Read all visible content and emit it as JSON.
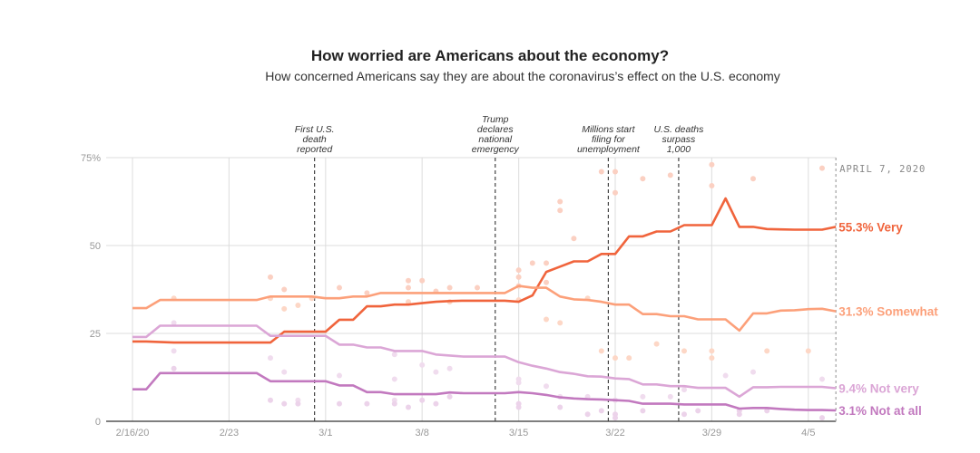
{
  "header": {
    "title": "How worried are Americans about the economy?",
    "subtitle": "How concerned Americans say they are about the coronavirus’s effect on the U.S. economy"
  },
  "chart_data": {
    "type": "line",
    "title": "How worried are Americans about the economy?",
    "subtitle": "How concerned Americans say they are about the coronavirus’s effect on the U.S. economy",
    "xlabel": "",
    "ylabel": "",
    "x_unit": "days since 2/16/20",
    "xlim": [
      0,
      51
    ],
    "ylim": [
      0,
      75
    ],
    "grid": true,
    "y_ticks": [
      {
        "value": 0,
        "label": "0"
      },
      {
        "value": 25,
        "label": "25"
      },
      {
        "value": 50,
        "label": "50"
      },
      {
        "value": 75,
        "label": "75%"
      }
    ],
    "x_ticks": [
      {
        "day": 0,
        "label": "2/16/20"
      },
      {
        "day": 7,
        "label": "2/23"
      },
      {
        "day": 14,
        "label": "3/1"
      },
      {
        "day": 21,
        "label": "3/8"
      },
      {
        "day": 28,
        "label": "3/15"
      },
      {
        "day": 35,
        "label": "3/22"
      },
      {
        "day": 42,
        "label": "3/29"
      },
      {
        "day": 49,
        "label": "4/5"
      }
    ],
    "end_date_label": "APRIL 7, 2020",
    "annotations": [
      {
        "day": 13.2,
        "lines": [
          "First U.S.",
          "death",
          "reported"
        ]
      },
      {
        "day": 26.3,
        "lines": [
          "Trump",
          "declares",
          "national",
          "emergency"
        ]
      },
      {
        "day": 34.5,
        "lines": [
          "Millions start",
          "filing for",
          "unemployment"
        ]
      },
      {
        "day": 39.6,
        "lines": [
          "U.S. deaths",
          "surpass",
          "1,000"
        ]
      }
    ],
    "series": [
      {
        "name": "Very",
        "end_label": "55.3% Very",
        "color": "#f0643c",
        "dot_color": "#fbd0c2",
        "x": [
          0,
          1,
          3,
          4,
          5,
          6,
          7,
          8,
          9,
          10,
          11,
          12,
          13,
          14,
          15,
          16,
          17,
          18,
          19,
          20,
          21,
          22,
          23,
          24,
          25,
          26,
          27,
          28,
          29,
          30,
          31,
          32,
          33,
          34,
          35,
          36,
          37,
          38,
          39,
          40,
          41,
          42,
          43,
          44,
          45,
          46,
          47,
          48,
          49,
          50,
          51
        ],
        "values": [
          22.7,
          22.7,
          22.4,
          22.4,
          22.4,
          22.4,
          22.4,
          22.4,
          22.4,
          22.4,
          25.5,
          25.5,
          25.5,
          25.5,
          28.9,
          28.9,
          32.7,
          32.7,
          33.2,
          33.2,
          33.6,
          34.0,
          34.2,
          34.3,
          34.3,
          34.3,
          34.3,
          34.0,
          35.8,
          42.5,
          44.0,
          45.5,
          45.5,
          47.6,
          47.6,
          52.6,
          52.6,
          54.0,
          54.0,
          55.8,
          55.8,
          55.8,
          63.4,
          55.3,
          55.3,
          54.7,
          54.6,
          54.5,
          54.5,
          54.5,
          55.3
        ],
        "dots": [
          [
            10,
            41
          ],
          [
            11,
            37.5
          ],
          [
            15,
            38
          ],
          [
            17,
            36.5
          ],
          [
            20,
            40
          ],
          [
            20,
            38
          ],
          [
            21,
            40
          ],
          [
            22,
            37
          ],
          [
            23,
            38
          ],
          [
            25,
            38
          ],
          [
            28,
            43
          ],
          [
            28,
            41
          ],
          [
            29,
            45
          ],
          [
            30,
            45
          ],
          [
            28,
            38.5
          ],
          [
            30,
            39.5
          ],
          [
            31,
            60
          ],
          [
            31,
            62.5
          ],
          [
            32,
            52
          ],
          [
            34,
            71
          ],
          [
            35,
            71
          ],
          [
            35,
            65
          ],
          [
            37,
            69
          ],
          [
            39,
            70
          ],
          [
            42,
            73
          ],
          [
            42,
            67
          ],
          [
            45,
            69
          ],
          [
            50,
            72
          ]
        ]
      },
      {
        "name": "Somewhat",
        "end_label": "31.3% Somewhat",
        "color": "#fca07a",
        "dot_color": "#fdd7c6",
        "x": [
          0,
          1,
          2,
          3,
          4,
          5,
          6,
          7,
          8,
          9,
          10,
          11,
          12,
          13,
          14,
          15,
          16,
          17,
          18,
          19,
          20,
          21,
          22,
          23,
          24,
          25,
          26,
          27,
          28,
          29,
          30,
          31,
          32,
          33,
          34,
          35,
          36,
          37,
          38,
          39,
          40,
          41,
          42,
          43,
          44,
          45,
          46,
          47,
          48,
          49,
          50,
          51
        ],
        "values": [
          32.2,
          32.2,
          34.5,
          34.5,
          34.5,
          34.5,
          34.5,
          34.5,
          34.5,
          34.5,
          35.5,
          35.5,
          35.5,
          35.5,
          35.0,
          35.0,
          35.5,
          35.5,
          36.5,
          36.5,
          36.5,
          36.5,
          36.5,
          36.5,
          36.5,
          36.5,
          36.5,
          36.5,
          38.5,
          38.0,
          38.0,
          35.5,
          34.7,
          34.5,
          34.0,
          33.2,
          33.2,
          30.5,
          30.5,
          29.9,
          29.9,
          29.0,
          29.0,
          29.0,
          25.8,
          30.7,
          30.7,
          31.5,
          31.6,
          31.9,
          32.0,
          31.3
        ],
        "dots": [
          [
            3,
            35
          ],
          [
            10,
            35
          ],
          [
            11,
            32
          ],
          [
            12,
            33
          ],
          [
            13,
            35
          ],
          [
            20,
            34
          ],
          [
            23,
            34
          ],
          [
            28,
            34.5
          ],
          [
            30,
            29
          ],
          [
            31,
            28
          ],
          [
            33,
            35
          ],
          [
            34,
            20
          ],
          [
            35,
            18
          ],
          [
            36,
            18
          ],
          [
            38,
            22
          ],
          [
            40,
            20
          ],
          [
            42,
            20
          ],
          [
            42,
            18
          ],
          [
            46,
            20
          ],
          [
            49,
            20
          ]
        ]
      },
      {
        "name": "Not very",
        "end_label": "9.4% Not very",
        "color": "#dba6d6",
        "dot_color": "#f0dcee",
        "x": [
          0,
          1,
          2,
          3,
          4,
          5,
          6,
          7,
          8,
          9,
          10,
          11,
          12,
          13,
          14,
          15,
          16,
          17,
          18,
          19,
          20,
          21,
          22,
          23,
          24,
          25,
          26,
          27,
          28,
          29,
          30,
          31,
          32,
          33,
          34,
          35,
          36,
          37,
          38,
          39,
          40,
          41,
          42,
          43,
          44,
          45,
          46,
          47,
          48,
          49,
          50,
          51
        ],
        "values": [
          24.0,
          24.0,
          27.2,
          27.2,
          27.2,
          27.2,
          27.2,
          27.2,
          27.2,
          27.2,
          24.3,
          24.3,
          24.3,
          24.3,
          24.3,
          21.8,
          21.8,
          21.0,
          21.0,
          20.0,
          20.0,
          20.0,
          19.0,
          18.7,
          18.4,
          18.4,
          18.4,
          18.4,
          16.8,
          15.8,
          15.0,
          14.0,
          13.5,
          12.8,
          12.7,
          12.2,
          12.0,
          10.5,
          10.5,
          10.0,
          10.0,
          9.5,
          9.5,
          9.5,
          7.0,
          9.7,
          9.7,
          9.8,
          9.8,
          9.8,
          9.8,
          9.4
        ],
        "dots": [
          [
            3,
            28
          ],
          [
            3,
            20
          ],
          [
            10,
            18
          ],
          [
            11,
            14
          ],
          [
            12,
            6
          ],
          [
            15,
            13
          ],
          [
            19,
            19
          ],
          [
            19,
            12
          ],
          [
            19,
            6
          ],
          [
            21,
            16
          ],
          [
            22,
            14
          ],
          [
            23,
            15
          ],
          [
            28,
            11
          ],
          [
            28,
            12
          ],
          [
            30,
            10
          ],
          [
            31,
            7
          ],
          [
            33,
            7
          ],
          [
            35,
            6
          ],
          [
            37,
            7
          ],
          [
            39,
            7
          ],
          [
            40,
            9
          ],
          [
            43,
            13
          ],
          [
            45,
            14
          ],
          [
            50,
            12
          ]
        ]
      },
      {
        "name": "Not at all",
        "end_label": "3.1% Not at all",
        "color": "#c279bf",
        "dot_color": "#ecd3ea",
        "x": [
          0,
          1,
          2,
          3,
          4,
          5,
          6,
          7,
          8,
          9,
          10,
          11,
          12,
          13,
          14,
          15,
          16,
          17,
          18,
          19,
          20,
          21,
          22,
          23,
          24,
          25,
          26,
          27,
          28,
          29,
          30,
          31,
          32,
          33,
          34,
          35,
          36,
          37,
          38,
          39,
          40,
          41,
          42,
          43,
          44,
          45,
          46,
          47,
          48,
          49,
          50,
          51
        ],
        "values": [
          9.1,
          9.1,
          13.7,
          13.7,
          13.7,
          13.7,
          13.7,
          13.7,
          13.7,
          13.7,
          11.4,
          11.4,
          11.4,
          11.4,
          11.4,
          10.2,
          10.2,
          8.3,
          8.3,
          7.7,
          7.7,
          7.7,
          7.7,
          8.2,
          8.0,
          8.0,
          8.0,
          8.0,
          8.3,
          8.0,
          7.5,
          6.8,
          6.5,
          6.3,
          6.2,
          6.0,
          5.8,
          5.0,
          5.0,
          5.0,
          4.8,
          4.8,
          4.8,
          4.8,
          3.6,
          3.8,
          3.8,
          3.5,
          3.3,
          3.2,
          3.2,
          3.1
        ],
        "dots": [
          [
            3,
            15
          ],
          [
            10,
            6
          ],
          [
            11,
            5
          ],
          [
            12,
            5
          ],
          [
            15,
            5
          ],
          [
            17,
            5
          ],
          [
            19,
            5
          ],
          [
            20,
            4
          ],
          [
            21,
            6
          ],
          [
            22,
            5
          ],
          [
            23,
            7
          ],
          [
            28,
            5
          ],
          [
            28,
            4
          ],
          [
            31,
            4
          ],
          [
            33,
            2
          ],
          [
            34,
            3
          ],
          [
            35,
            1
          ],
          [
            35,
            2
          ],
          [
            37,
            3
          ],
          [
            40,
            2
          ],
          [
            41,
            3
          ],
          [
            44,
            2
          ],
          [
            44,
            3
          ],
          [
            46,
            3
          ],
          [
            50,
            1
          ]
        ]
      }
    ]
  }
}
